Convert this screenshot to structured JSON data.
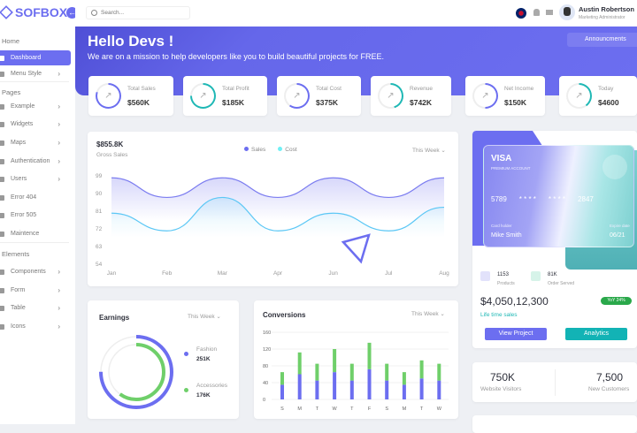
{
  "brand": "SOFBOX",
  "search": {
    "placeholder": "Search..."
  },
  "user": {
    "name": "Austin Robertson",
    "role": "Marketing Administrator"
  },
  "sidebar": {
    "sections": [
      "Home",
      "Pages",
      "Elements"
    ],
    "items": [
      {
        "label": "Dashboard",
        "active": true
      },
      {
        "label": "Menu Style"
      },
      {
        "label": "Example"
      },
      {
        "label": "Widgets"
      },
      {
        "label": "Maps"
      },
      {
        "label": "Authentication"
      },
      {
        "label": "Users"
      },
      {
        "label": "Error 404"
      },
      {
        "label": "Error 505"
      },
      {
        "label": "Maintence"
      },
      {
        "label": "Components"
      },
      {
        "label": "Form"
      },
      {
        "label": "Table"
      },
      {
        "label": "Icons"
      }
    ]
  },
  "banner": {
    "title": "Hello Devs !",
    "subtitle": "We are on a mission to help developers like you to build beautiful projects for FREE.",
    "announce": "Announcments"
  },
  "stats": [
    {
      "label": "Total Sales",
      "value": "$560K",
      "color": "#6c6ef0",
      "pct": 80
    },
    {
      "label": "Total Profit",
      "value": "$185K",
      "color": "#1fb8b5",
      "pct": 75
    },
    {
      "label": "Total Cost",
      "value": "$375K",
      "color": "#6c6ef0",
      "pct": 60
    },
    {
      "label": "Revenue",
      "value": "$742K",
      "color": "#1fb8b5",
      "pct": 45
    },
    {
      "label": "Net Income",
      "value": "$150K",
      "color": "#6c6ef0",
      "pct": 50
    },
    {
      "label": "Today",
      "value": "$4600",
      "color": "#1fb8b5",
      "pct": 40
    }
  ],
  "gross": {
    "value": "$855.8K",
    "label": "Gross Sales",
    "period": "This Week"
  },
  "chart_data": [
    {
      "type": "area",
      "categories": [
        "Jan",
        "Feb",
        "Mar",
        "Apr",
        "Jun",
        "Jul",
        "Aug"
      ],
      "ylim": [
        54,
        99
      ],
      "yticks": [
        "99",
        "90",
        "81",
        "72",
        "63",
        "54"
      ],
      "series": [
        {
          "name": "Sales",
          "color": "#7b7cf0",
          "values": [
            98,
            88,
            98,
            88,
            98,
            88,
            98
          ]
        },
        {
          "name": "Cost",
          "color": "#5bc7f5",
          "values": [
            80,
            71,
            88,
            71,
            80,
            71,
            83
          ]
        }
      ],
      "legend": "top-center",
      "grid": false
    },
    {
      "type": "bar",
      "title": "Conversions",
      "categories": [
        "S",
        "M",
        "T",
        "W",
        "T",
        "F",
        "S",
        "M",
        "T",
        "W"
      ],
      "ylim": [
        0,
        160
      ],
      "yticks": [
        "160",
        "120",
        "80",
        "40",
        "0"
      ],
      "series": [
        {
          "color": "#6c6ef0",
          "values": [
            35,
            60,
            45,
            65,
            45,
            72,
            45,
            35,
            50,
            45
          ]
        },
        {
          "color": "#6fcf6a",
          "values": [
            30,
            52,
            40,
            55,
            40,
            63,
            40,
            30,
            43,
            40
          ]
        }
      ],
      "stacked": true
    },
    {
      "type": "pie",
      "title": "Earnings",
      "series": [
        {
          "name": "Fashion",
          "value": "251K",
          "color": "#6c6ef0",
          "pct": 75
        },
        {
          "name": "Accessories",
          "value": "176K",
          "color": "#6fcf6a",
          "pct": 60
        }
      ]
    }
  ],
  "earnings": {
    "title": "Earnings",
    "period": "This Week"
  },
  "conversions": {
    "title": "Conversions",
    "period": "This Week"
  },
  "visa": {
    "brand": "VISA",
    "type": "PREMIUM ACCOUNT",
    "n1": "5789",
    "n2": "* * * *",
    "n3": "* * * *",
    "n4": "2847",
    "holder_label": "Card holder",
    "holder": "Mike Smith",
    "exp_label": "Expire date",
    "exp": "06/21"
  },
  "summary": {
    "products": "1153",
    "products_label": "Products",
    "orders": "81K",
    "orders_label": "Order Served",
    "total": "$4,050,12,300",
    "badge": "YoY 24%",
    "lifetime": "Life time sales",
    "view": "View Project",
    "analytics": "Analytics"
  },
  "visitors": {
    "v1": "750K",
    "l1": "Website Visitors",
    "v2": "7,500",
    "l2": "New Customers"
  }
}
